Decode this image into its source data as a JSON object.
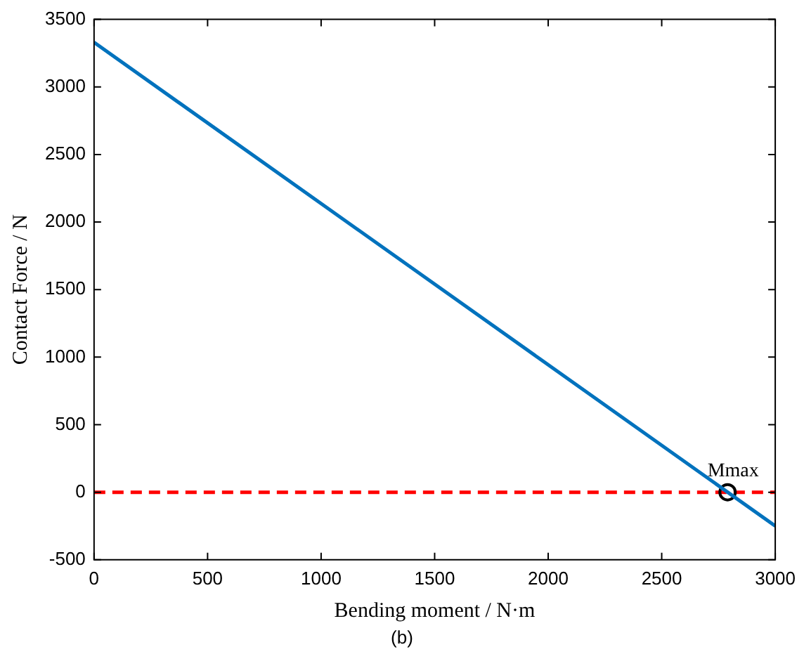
{
  "chart_data": {
    "type": "line",
    "xlabel": "Bending moment / N·m",
    "ylabel": "Contact Force / N",
    "x": [
      0,
      3000
    ],
    "series": [
      {
        "color": "#0072bd",
        "values": [
          3330,
          -250
        ]
      },
      {
        "type": "scatter",
        "color": "#000000",
        "x": [
          2790
        ],
        "values": [
          0
        ],
        "marker": "circle"
      }
    ],
    "xlim": [
      0,
      3000
    ],
    "xticks": [
      0,
      500,
      1000,
      1500,
      2000,
      2500,
      3000
    ],
    "ylim": [
      -500,
      3500
    ],
    "yticks": [
      -500,
      0,
      500,
      1000,
      1500,
      2000,
      2500,
      3000,
      3500
    ],
    "ref_lines": [
      {
        "axis": "y",
        "value": 0,
        "color": "#ff0000",
        "line_style": "dashed"
      }
    ],
    "annotations": [
      {
        "text": "Mmax",
        "x": 2790,
        "y": 0
      },
      "(b)"
    ],
    "grid": false,
    "legend": false
  }
}
